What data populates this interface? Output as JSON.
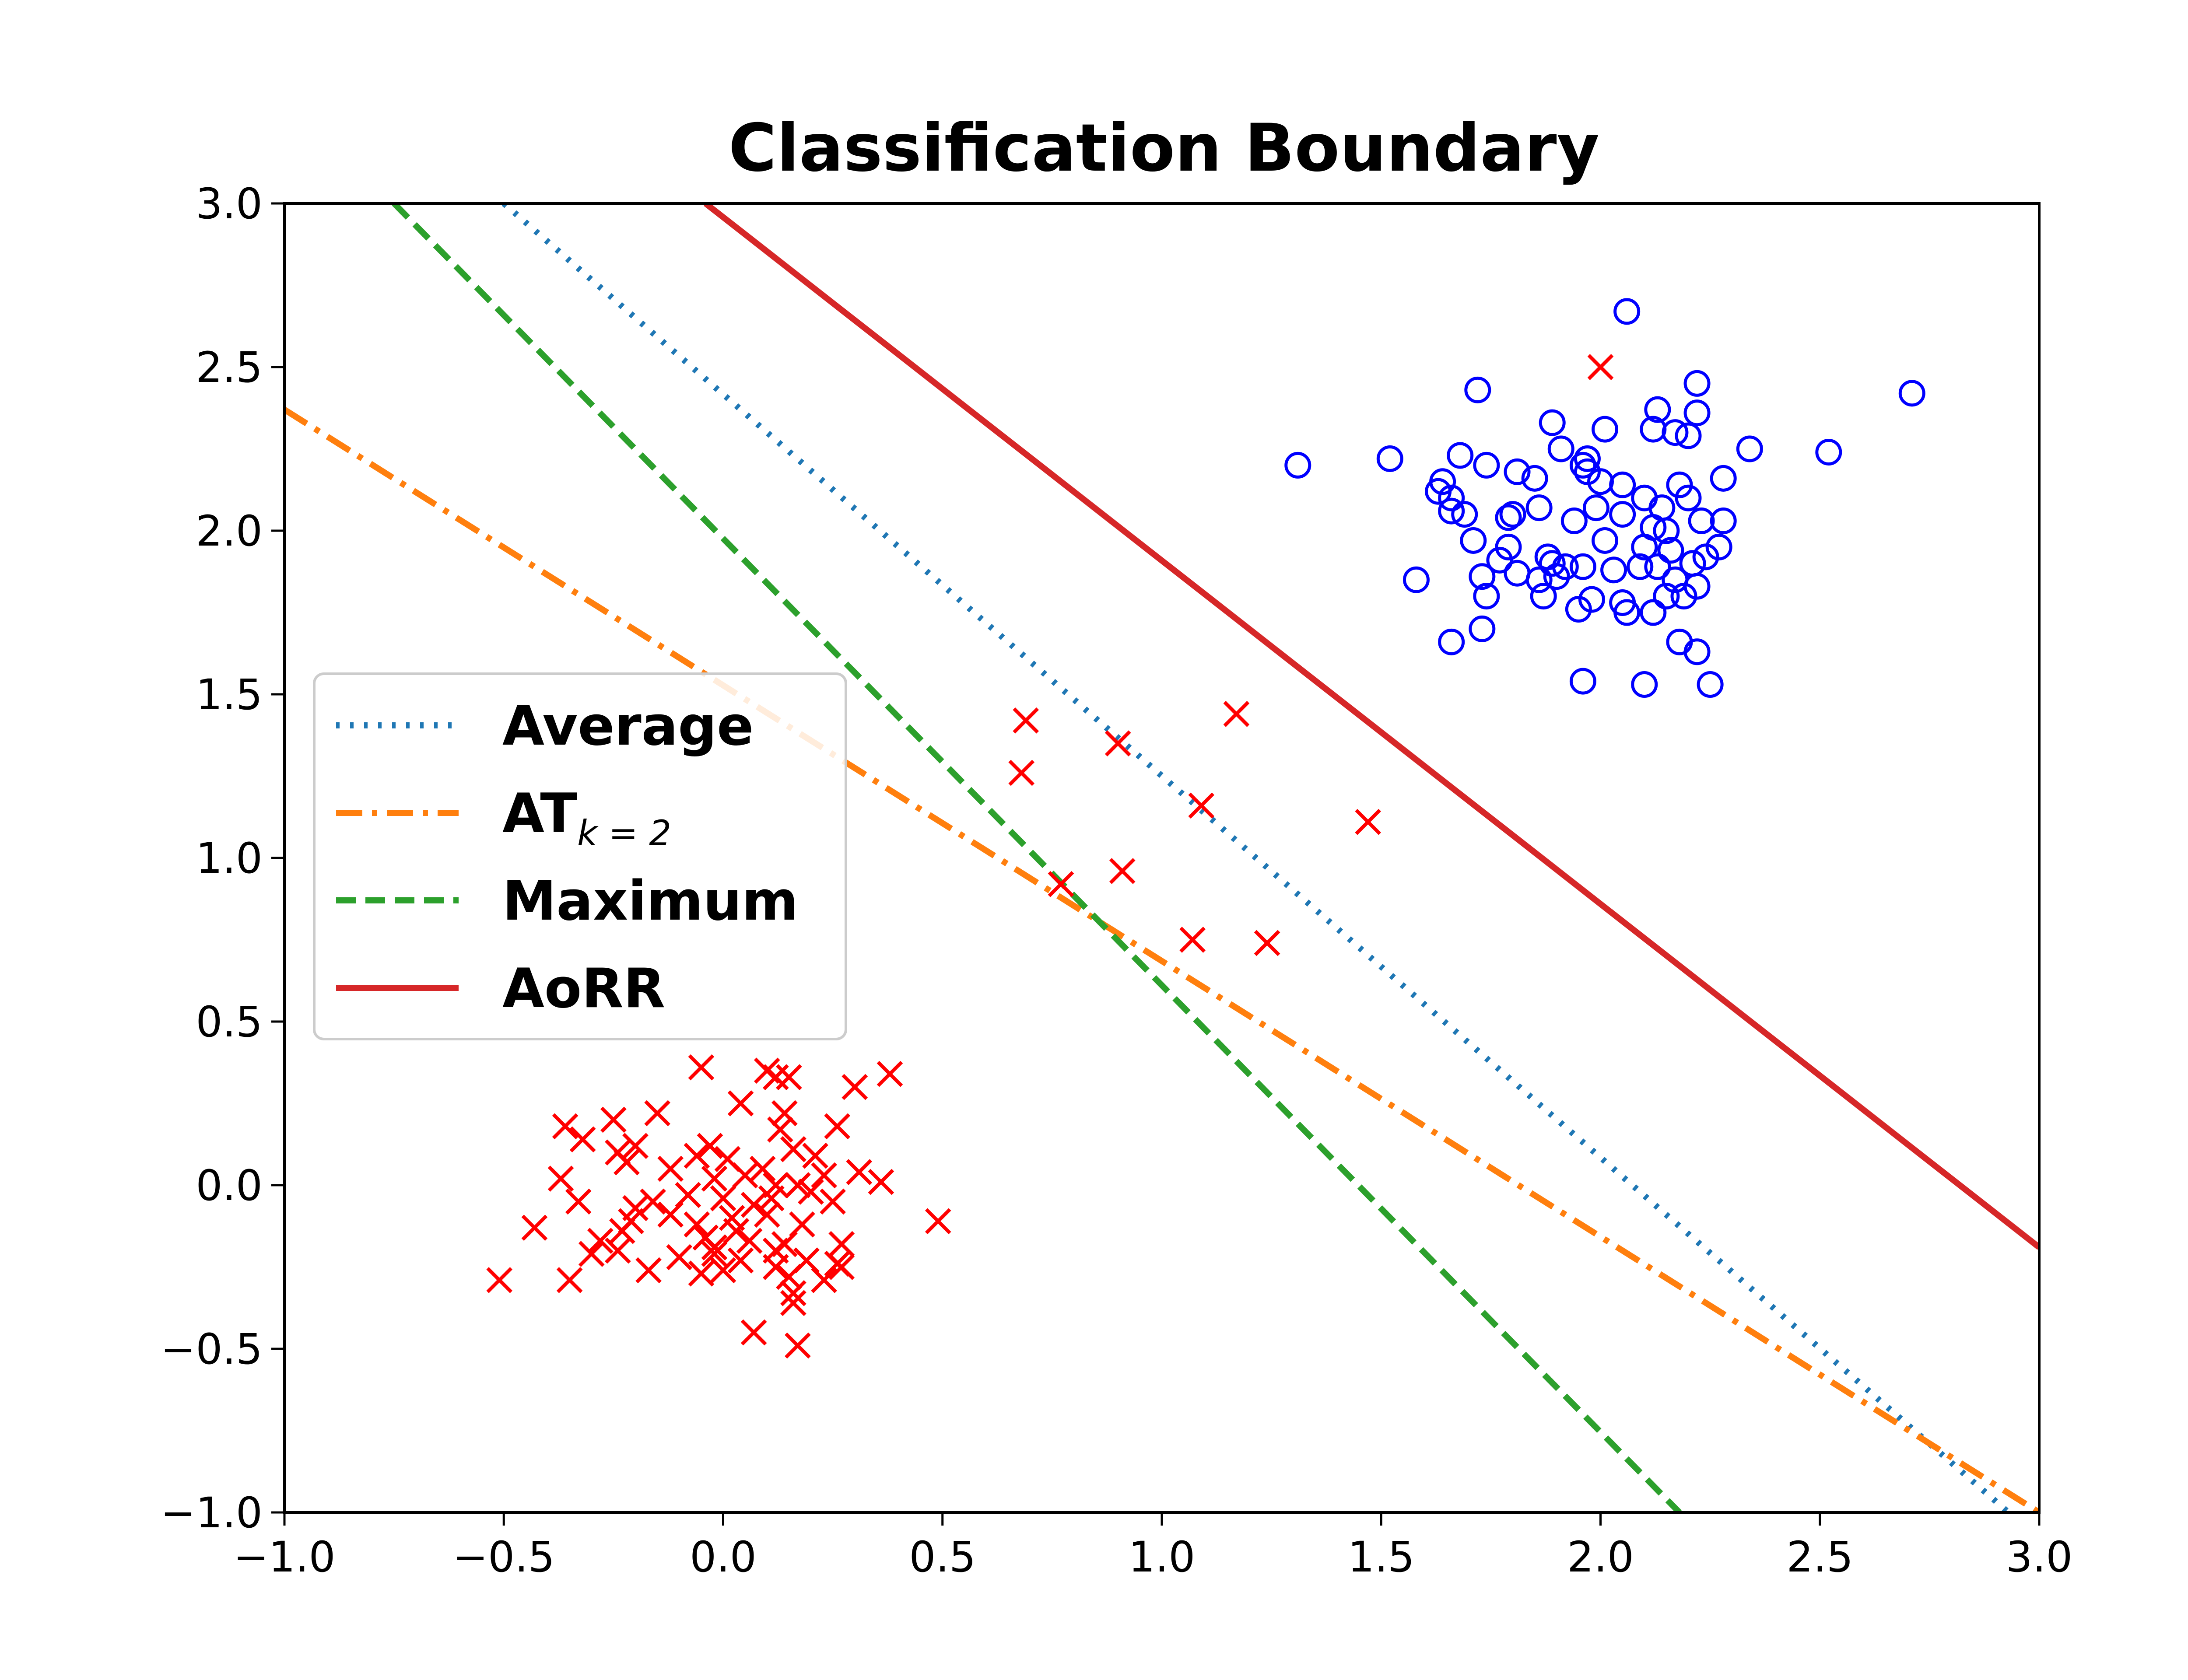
{
  "chart_data": {
    "type": "scatter",
    "title": "Classification Boundary",
    "xlabel": "",
    "ylabel": "",
    "xlim": [
      -1.0,
      3.0
    ],
    "ylim": [
      -1.0,
      3.0
    ],
    "x_ticks": [
      -1.0,
      -0.5,
      0.0,
      0.5,
      1.0,
      1.5,
      2.0,
      2.5,
      3.0
    ],
    "y_ticks": [
      -1.0,
      -0.5,
      0.0,
      0.5,
      1.0,
      1.5,
      2.0,
      2.5,
      3.0
    ],
    "x_tick_labels": [
      "−1.0",
      "−0.5",
      "0.0",
      "0.5",
      "1.0",
      "1.5",
      "2.0",
      "2.5",
      "3.0"
    ],
    "y_tick_labels": [
      "−1.0",
      "−0.5",
      "0.0",
      "0.5",
      "1.0",
      "1.5",
      "2.0",
      "2.5",
      "3.0"
    ],
    "grid": false,
    "legend_position": "center-left",
    "lines": [
      {
        "name": "Average",
        "label_main": "Average",
        "label_sub": "",
        "style": "dotted",
        "color": "#1f77b4",
        "points": [
          [
            -0.5,
            3.0
          ],
          [
            2.93,
            -1.0
          ]
        ]
      },
      {
        "name": "ATk=2",
        "label_main": "AT",
        "label_sub": "k = 2",
        "style": "dashdot",
        "color": "#ff7f0e",
        "points": [
          [
            -1.0,
            2.37
          ],
          [
            3.0,
            -1.0
          ]
        ]
      },
      {
        "name": "Maximum",
        "label_main": "Maximum",
        "label_sub": "",
        "style": "dashed",
        "color": "#2ca02c",
        "points": [
          [
            -0.75,
            3.0
          ],
          [
            2.18,
            -1.0
          ]
        ]
      },
      {
        "name": "AoRR",
        "label_main": "AoRR",
        "label_sub": "",
        "style": "solid",
        "color": "#d62728",
        "points": [
          [
            -0.04,
            3.0
          ],
          [
            3.0,
            -0.19
          ]
        ]
      }
    ],
    "scatter": [
      {
        "marker": "x",
        "color": "#ff0000",
        "points": [
          [
            -0.05,
            0.36
          ],
          [
            0.1,
            0.35
          ],
          [
            0.15,
            0.33
          ],
          [
            0.3,
            0.3
          ],
          [
            0.38,
            0.34
          ],
          [
            0.12,
            0.33
          ],
          [
            -0.25,
            0.2
          ],
          [
            -0.36,
            0.18
          ],
          [
            -0.32,
            0.14
          ],
          [
            -0.2,
            0.12
          ],
          [
            -0.15,
            0.22
          ],
          [
            -0.24,
            0.1
          ],
          [
            0.04,
            0.25
          ],
          [
            0.14,
            0.22
          ],
          [
            0.26,
            0.18
          ],
          [
            0.13,
            0.17
          ],
          [
            0.21,
            0.09
          ],
          [
            0.16,
            0.11
          ],
          [
            -0.03,
            0.12
          ],
          [
            0.09,
            0.05
          ],
          [
            0.01,
            0.08
          ],
          [
            -0.06,
            0.09
          ],
          [
            0.31,
            0.04
          ],
          [
            0.36,
            0.01
          ],
          [
            0.23,
            0.03
          ],
          [
            0.17,
            0.0
          ],
          [
            0.12,
            0.0
          ],
          [
            0.05,
            0.03
          ],
          [
            -0.02,
            0.02
          ],
          [
            -0.12,
            0.05
          ],
          [
            -0.22,
            0.07
          ],
          [
            -0.37,
            0.02
          ],
          [
            -0.33,
            -0.05
          ],
          [
            -0.2,
            -0.07
          ],
          [
            -0.16,
            -0.05
          ],
          [
            -0.08,
            -0.03
          ],
          [
            0.0,
            -0.04
          ],
          [
            0.07,
            -0.06
          ],
          [
            0.11,
            -0.04
          ],
          [
            0.2,
            -0.02
          ],
          [
            0.25,
            -0.05
          ],
          [
            0.49,
            -0.11
          ],
          [
            -0.43,
            -0.13
          ],
          [
            -0.21,
            -0.11
          ],
          [
            -0.12,
            -0.09
          ],
          [
            -0.06,
            -0.12
          ],
          [
            0.02,
            -0.1
          ],
          [
            0.1,
            -0.09
          ],
          [
            0.18,
            -0.12
          ],
          [
            0.03,
            -0.14
          ],
          [
            -0.04,
            -0.16
          ],
          [
            0.06,
            -0.17
          ],
          [
            -0.28,
            -0.17
          ],
          [
            -0.23,
            -0.14
          ],
          [
            -0.02,
            -0.19
          ],
          [
            0.14,
            -0.18
          ],
          [
            0.27,
            -0.18
          ],
          [
            -0.1,
            -0.22
          ],
          [
            0.04,
            -0.23
          ],
          [
            0.19,
            -0.23
          ],
          [
            -0.3,
            -0.21
          ],
          [
            -0.24,
            -0.2
          ],
          [
            0.12,
            -0.25
          ],
          [
            0.27,
            -0.25
          ],
          [
            -0.51,
            -0.29
          ],
          [
            -0.35,
            -0.29
          ],
          [
            -0.17,
            -0.26
          ],
          [
            -0.05,
            -0.27
          ],
          [
            0.0,
            -0.26
          ],
          [
            0.15,
            -0.28
          ],
          [
            0.23,
            -0.29
          ],
          [
            0.26,
            -0.24
          ],
          [
            -0.02,
            -0.21
          ],
          [
            0.16,
            -0.33
          ],
          [
            0.16,
            -0.36
          ],
          [
            0.07,
            -0.45
          ],
          [
            0.17,
            -0.49
          ],
          [
            0.12,
            -0.2
          ],
          [
            0.69,
            1.42
          ],
          [
            0.68,
            1.26
          ],
          [
            0.9,
            1.35
          ],
          [
            1.17,
            1.44
          ],
          [
            1.09,
            1.16
          ],
          [
            1.47,
            1.11
          ],
          [
            0.77,
            0.92
          ],
          [
            0.91,
            0.96
          ],
          [
            1.07,
            0.75
          ],
          [
            1.24,
            0.74
          ],
          [
            2.0,
            2.5
          ]
        ]
      },
      {
        "marker": "o",
        "color": "#0000ff",
        "points": [
          [
            2.06,
            2.67
          ],
          [
            2.71,
            2.42
          ],
          [
            1.72,
            2.43
          ],
          [
            2.22,
            2.45
          ],
          [
            2.13,
            2.37
          ],
          [
            2.22,
            2.36
          ],
          [
            1.89,
            2.33
          ],
          [
            2.01,
            2.31
          ],
          [
            2.12,
            2.31
          ],
          [
            2.17,
            2.3
          ],
          [
            2.2,
            2.29
          ],
          [
            1.31,
            2.2
          ],
          [
            1.52,
            2.22
          ],
          [
            1.68,
            2.23
          ],
          [
            2.34,
            2.25
          ],
          [
            2.52,
            2.24
          ],
          [
            1.74,
            2.2
          ],
          [
            1.91,
            2.25
          ],
          [
            1.97,
            2.22
          ],
          [
            1.81,
            2.18
          ],
          [
            2.28,
            2.16
          ],
          [
            2.0,
            2.15
          ],
          [
            1.85,
            2.16
          ],
          [
            2.05,
            2.14
          ],
          [
            2.18,
            2.14
          ],
          [
            1.64,
            2.15
          ],
          [
            1.66,
            2.1
          ],
          [
            1.63,
            2.12
          ],
          [
            1.97,
            2.18
          ],
          [
            1.96,
            2.2
          ],
          [
            2.1,
            2.1
          ],
          [
            2.2,
            2.1
          ],
          [
            2.14,
            2.07
          ],
          [
            1.86,
            2.07
          ],
          [
            1.99,
            2.07
          ],
          [
            2.05,
            2.05
          ],
          [
            1.66,
            2.06
          ],
          [
            1.69,
            2.05
          ],
          [
            1.79,
            2.04
          ],
          [
            1.8,
            2.05
          ],
          [
            2.23,
            2.03
          ],
          [
            2.28,
            2.03
          ],
          [
            1.94,
            2.03
          ],
          [
            2.12,
            2.01
          ],
          [
            2.15,
            2.0
          ],
          [
            1.71,
            1.97
          ],
          [
            2.01,
            1.97
          ],
          [
            2.1,
            1.95
          ],
          [
            2.16,
            1.94
          ],
          [
            2.27,
            1.95
          ],
          [
            1.79,
            1.95
          ],
          [
            1.88,
            1.92
          ],
          [
            1.77,
            1.91
          ],
          [
            1.89,
            1.9
          ],
          [
            1.92,
            1.89
          ],
          [
            1.96,
            1.89
          ],
          [
            2.03,
            1.88
          ],
          [
            2.09,
            1.89
          ],
          [
            2.13,
            1.89
          ],
          [
            2.21,
            1.9
          ],
          [
            2.24,
            1.92
          ],
          [
            1.73,
            1.86
          ],
          [
            1.81,
            1.87
          ],
          [
            1.86,
            1.85
          ],
          [
            1.9,
            1.86
          ],
          [
            1.58,
            1.85
          ],
          [
            2.17,
            1.85
          ],
          [
            2.22,
            1.83
          ],
          [
            1.74,
            1.8
          ],
          [
            1.87,
            1.8
          ],
          [
            1.98,
            1.79
          ],
          [
            2.05,
            1.78
          ],
          [
            2.15,
            1.8
          ],
          [
            2.19,
            1.8
          ],
          [
            1.95,
            1.76
          ],
          [
            2.06,
            1.75
          ],
          [
            2.12,
            1.75
          ],
          [
            1.73,
            1.7
          ],
          [
            1.66,
            1.66
          ],
          [
            2.18,
            1.66
          ],
          [
            2.22,
            1.63
          ],
          [
            1.96,
            1.54
          ],
          [
            2.1,
            1.53
          ],
          [
            2.25,
            1.53
          ]
        ]
      }
    ]
  }
}
